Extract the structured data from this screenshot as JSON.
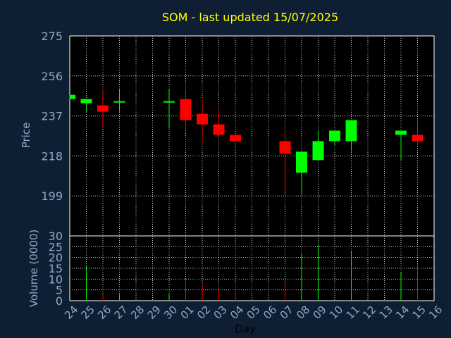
{
  "chart_data": {
    "type": "candlestick",
    "title": "SOM - last updated 15/07/2025",
    "xlabel": "Day",
    "price_axis": {
      "label": "Price",
      "ticks": [
        199,
        218,
        237,
        256,
        275
      ],
      "ylim": [
        180,
        275
      ]
    },
    "volume_axis": {
      "label": "Volume (0000)",
      "ticks": [
        0,
        5,
        10,
        15,
        20,
        25,
        30
      ],
      "ylim": [
        0,
        30
      ]
    },
    "x_tick_labels": [
      "24",
      "25",
      "26",
      "27",
      "28",
      "29",
      "30",
      "01",
      "02",
      "03",
      "04",
      "05",
      "06",
      "07",
      "08",
      "09",
      "10",
      "11",
      "12",
      "13",
      "14",
      "15",
      "16"
    ],
    "grid": true,
    "colors": {
      "up": "#00ff00",
      "down": "#ff0000",
      "neutral": "#00ff00",
      "title": "#ffff00",
      "axis_text": "#8fa8c8",
      "background": "#0f1f33",
      "grid": "#ffffff"
    },
    "candles": [
      {
        "day": "24",
        "open": 245,
        "high": 247,
        "low": 245,
        "close": 247,
        "volume": 0
      },
      {
        "day": "25",
        "open": 243,
        "high": 245,
        "low": 239,
        "close": 245,
        "volume": 16
      },
      {
        "day": "26",
        "open": 242,
        "high": 250,
        "low": 231,
        "close": 239,
        "volume": 3
      },
      {
        "day": "27",
        "open": 244,
        "high": 250,
        "low": 239,
        "close": 244,
        "volume": 3
      },
      {
        "day": "30",
        "open": 244,
        "high": 250,
        "low": 231,
        "close": 244,
        "volume": 3
      },
      {
        "day": "01",
        "open": 245,
        "high": 250,
        "low": 229,
        "close": 235,
        "volume": 10
      },
      {
        "day": "02",
        "open": 238,
        "high": 245,
        "low": 225,
        "close": 233,
        "volume": 8
      },
      {
        "day": "03",
        "open": 233,
        "high": 240,
        "low": 228,
        "close": 228,
        "volume": 5
      },
      {
        "day": "04",
        "open": 228,
        "high": 228,
        "low": 221,
        "close": 225,
        "volume": 3
      },
      {
        "day": "07",
        "open": 225,
        "high": 230,
        "low": 201,
        "close": 219,
        "volume": 8
      },
      {
        "day": "08",
        "open": 210,
        "high": 220,
        "low": 200,
        "close": 220,
        "volume": 22
      },
      {
        "day": "09",
        "open": 216,
        "high": 230,
        "low": 216,
        "close": 225,
        "volume": 26
      },
      {
        "day": "10",
        "open": 225,
        "high": 230,
        "low": 223,
        "close": 230,
        "volume": 0
      },
      {
        "day": "11",
        "open": 225,
        "high": 235,
        "low": 220,
        "close": 235,
        "volume": 23
      },
      {
        "day": "14",
        "open": 228,
        "high": 230,
        "low": 216,
        "close": 230,
        "volume": 13
      },
      {
        "day": "15",
        "open": 228,
        "high": 236,
        "low": 223,
        "close": 225,
        "volume": 17
      }
    ]
  }
}
